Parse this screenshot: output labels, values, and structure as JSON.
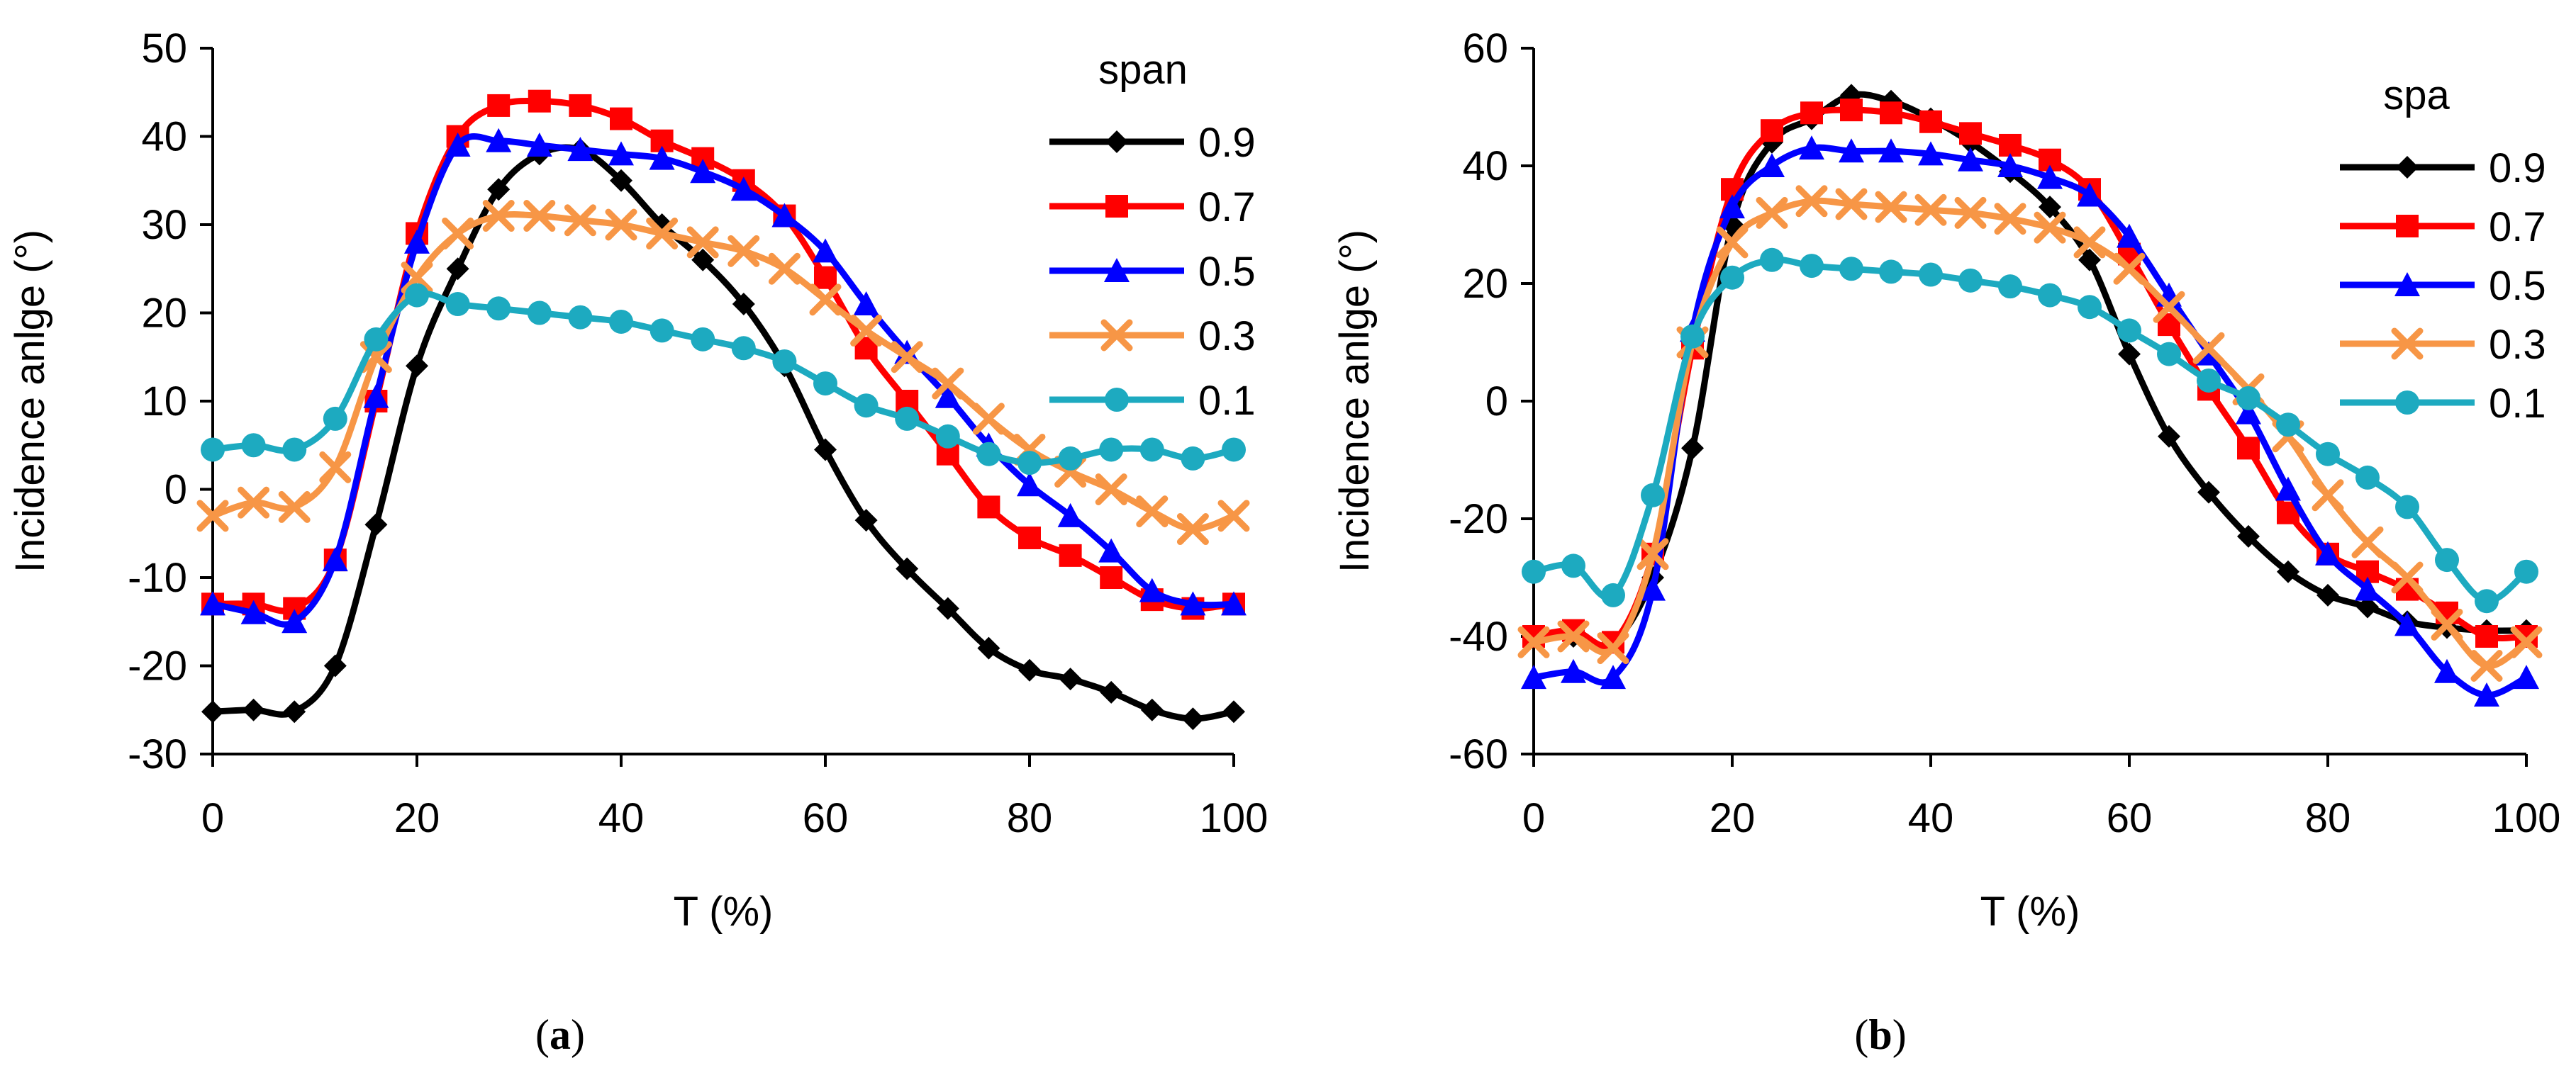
{
  "chart_data": [
    {
      "type": "line",
      "panel_label_prefix": "(",
      "panel_label_letter": "a",
      "panel_label_suffix": ")",
      "xlabel": "T (%)",
      "ylabel": "Incidence anlge (°)",
      "xlim": [
        0,
        100
      ],
      "ylim": [
        -30,
        50
      ],
      "xticks": [
        0,
        20,
        40,
        60,
        80,
        100
      ],
      "yticks": [
        -30,
        -20,
        -10,
        0,
        10,
        20,
        30,
        40,
        50
      ],
      "grid": false,
      "legend_title": "span",
      "legend_position": "right",
      "x": [
        0,
        4,
        8,
        12,
        16,
        20,
        24,
        28,
        32,
        36,
        40,
        44,
        48,
        52,
        56,
        60,
        64,
        68,
        72,
        76,
        80,
        84,
        88,
        92,
        96,
        100
      ],
      "series": [
        {
          "name": "0.9",
          "color": "#000000",
          "marker": "diamond",
          "values": [
            -25.2,
            -25,
            -25.2,
            -20,
            -4,
            14,
            25,
            34,
            38,
            38.5,
            35,
            30,
            26,
            21,
            14,
            4.5,
            -3.5,
            -9,
            -13.5,
            -18,
            -20.5,
            -21.5,
            -23,
            -25,
            -26,
            -25.2
          ]
        },
        {
          "name": "0.7",
          "color": "#ff0000",
          "marker": "square",
          "values": [
            -13,
            -13,
            -13.5,
            -8,
            10,
            29,
            40,
            43.5,
            44,
            43.5,
            42,
            39.5,
            37.5,
            35,
            31,
            24,
            16,
            10,
            4,
            -2,
            -5.5,
            -7.5,
            -10,
            -12.5,
            -13.5,
            -13
          ]
        },
        {
          "name": "0.5",
          "color": "#0000ff",
          "marker": "triangle",
          "values": [
            -13,
            -14,
            -15,
            -8,
            10.5,
            28,
            39,
            39.5,
            39,
            38.5,
            38,
            37.5,
            36,
            34,
            31,
            27,
            21,
            15.5,
            10.5,
            5,
            0.5,
            -3,
            -7,
            -11.5,
            -13,
            -13
          ]
        },
        {
          "name": "0.3",
          "color": "#f79646",
          "marker": "x",
          "values": [
            -3,
            -1.5,
            -2,
            2.5,
            15,
            24,
            29,
            31,
            31,
            30.5,
            30,
            29,
            28,
            27,
            25,
            21.5,
            18,
            15,
            12,
            8,
            4.5,
            2,
            0,
            -2.5,
            -4.5,
            -3
          ]
        },
        {
          "name": "0.1",
          "color": "#1daac0",
          "marker": "circle",
          "values": [
            4.5,
            5,
            4.5,
            8,
            17,
            22,
            21,
            20.5,
            20,
            19.5,
            19,
            18,
            17,
            16,
            14.5,
            12,
            9.5,
            8,
            6,
            4,
            3,
            3.5,
            4.5,
            4.5,
            3.5,
            4.5
          ]
        }
      ]
    },
    {
      "type": "line",
      "panel_label_prefix": "(",
      "panel_label_letter": "b",
      "panel_label_suffix": ")",
      "xlabel": "T (%)",
      "ylabel": "Incidence anlge (°)",
      "xlim": [
        0,
        100
      ],
      "ylim": [
        -60,
        60
      ],
      "xticks": [
        0,
        20,
        40,
        60,
        80,
        100
      ],
      "yticks": [
        -60,
        -40,
        -20,
        0,
        20,
        40,
        60
      ],
      "grid": false,
      "legend_title": "spa",
      "legend_position": "right",
      "x": [
        0,
        4,
        8,
        12,
        16,
        20,
        24,
        28,
        32,
        36,
        40,
        44,
        48,
        52,
        56,
        60,
        64,
        68,
        72,
        76,
        80,
        84,
        88,
        92,
        96,
        100
      ],
      "series": [
        {
          "name": "0.9",
          "color": "#000000",
          "marker": "diamond",
          "values": [
            -40,
            -40,
            -41,
            -30,
            -8,
            30,
            44,
            48,
            52,
            51,
            48,
            44,
            39,
            33,
            24,
            8,
            -6,
            -15.5,
            -23,
            -29,
            -33,
            -35,
            -37.5,
            -38.5,
            -39,
            -39
          ]
        },
        {
          "name": "0.7",
          "color": "#ff0000",
          "marker": "square",
          "values": [
            -40,
            -39,
            -41,
            -26,
            9,
            36,
            46,
            49,
            49.5,
            49,
            47.5,
            45.5,
            43.5,
            41,
            36,
            25,
            13,
            2,
            -8,
            -19,
            -26,
            -29,
            -32,
            -36,
            -40,
            -40
          ]
        },
        {
          "name": "0.5",
          "color": "#0000ff",
          "marker": "triangle",
          "values": [
            -47,
            -46,
            -47,
            -32,
            12,
            33,
            40,
            43,
            42.5,
            42.5,
            42,
            41,
            40,
            38,
            35,
            28,
            18,
            8,
            -2,
            -15,
            -26,
            -32,
            -38,
            -46,
            -50,
            -47
          ]
        },
        {
          "name": "0.3",
          "color": "#f79646",
          "marker": "x",
          "values": [
            -41,
            -40,
            -42,
            -26,
            10,
            27,
            32,
            34,
            33.5,
            33,
            32.5,
            32,
            31,
            29.5,
            27,
            22.5,
            16,
            9,
            2,
            -6,
            -16,
            -24,
            -30,
            -38,
            -45,
            -41
          ]
        },
        {
          "name": "0.1",
          "color": "#1daac0",
          "marker": "circle",
          "values": [
            -29,
            -28,
            -33,
            -16,
            11,
            21,
            24,
            23,
            22.5,
            22,
            21.5,
            20.5,
            19.5,
            18,
            16,
            12,
            8,
            3.5,
            0.5,
            -4,
            -9,
            -13,
            -18,
            -27,
            -34,
            -29
          ]
        }
      ]
    }
  ]
}
